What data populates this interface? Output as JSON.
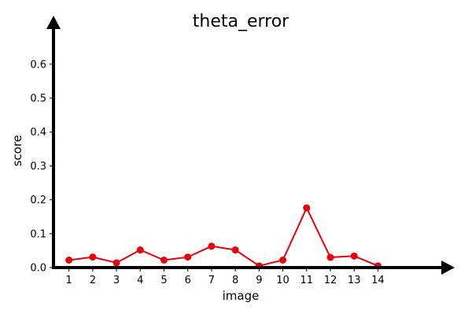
{
  "chart_data": {
    "type": "line",
    "title": "theta_error",
    "xlabel": "image",
    "ylabel": "score",
    "x": [
      1,
      2,
      3,
      4,
      5,
      6,
      7,
      8,
      9,
      10,
      11,
      12,
      13,
      14
    ],
    "x_tick_labels": [
      "1",
      "2",
      "3",
      "4",
      "5",
      "6",
      "7",
      "8",
      "9",
      "10",
      "11",
      "12",
      "13",
      "14"
    ],
    "y_ticks": [
      0.0,
      0.1,
      0.2,
      0.3,
      0.4,
      0.5,
      0.6
    ],
    "y_tick_labels": [
      "0.0",
      "0.1",
      "0.2",
      "0.3",
      "0.4",
      "0.5",
      "0.6"
    ],
    "xlim": [
      0.35,
      16.7
    ],
    "ylim": [
      0,
      0.72
    ],
    "grid": false,
    "series": [
      {
        "color": "#e8000b",
        "marker": "circle",
        "values": [
          0.022,
          0.031,
          0.014,
          0.052,
          0.022,
          0.031,
          0.063,
          0.052,
          0.005,
          0.022,
          0.176,
          0.03,
          0.034,
          0.005
        ]
      }
    ],
    "axis_color": "#000000"
  }
}
